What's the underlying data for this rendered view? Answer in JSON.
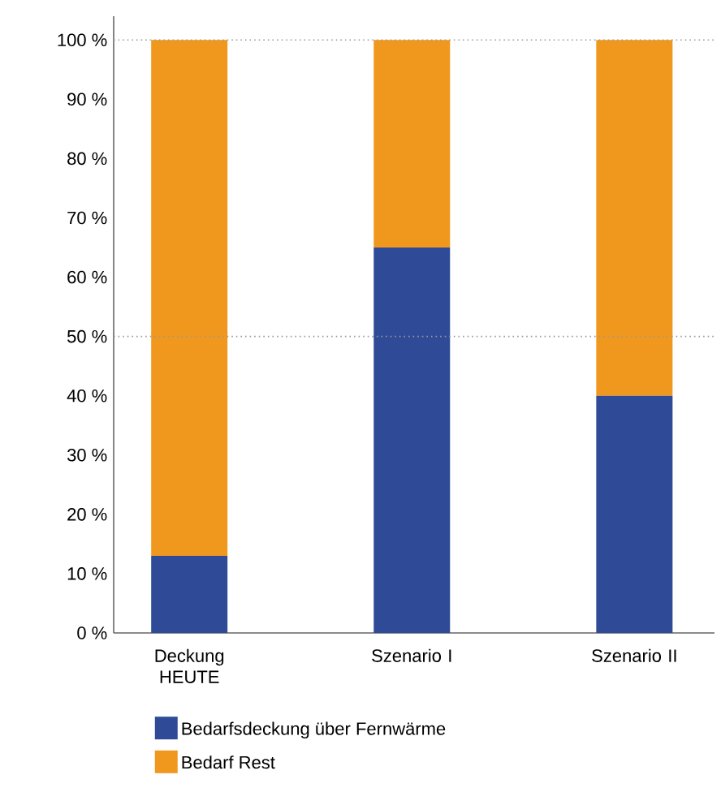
{
  "chart_data": {
    "type": "bar",
    "stacked": true,
    "categories": [
      "Deckung HEUTE",
      "Szenario I",
      "Szenario II"
    ],
    "series": [
      {
        "name": "Bedarfsdeckung über Fernwärme",
        "color": "#2f4b97",
        "values": [
          13,
          65,
          40
        ]
      },
      {
        "name": "Bedarf Rest",
        "color": "#f0971d",
        "values": [
          87,
          35,
          60
        ]
      }
    ],
    "ylim": [
      0,
      104
    ],
    "yticks": [
      {
        "value": 0,
        "label": "0 %"
      },
      {
        "value": 10,
        "label": "10 %"
      },
      {
        "value": 20,
        "label": "20 %"
      },
      {
        "value": 30,
        "label": "30 %"
      },
      {
        "value": 40,
        "label": "40 %"
      },
      {
        "value": 50,
        "label": "50 %"
      },
      {
        "value": 60,
        "label": "60 %"
      },
      {
        "value": 70,
        "label": "70 %"
      },
      {
        "value": 80,
        "label": "80 %"
      },
      {
        "value": 90,
        "label": "90 %"
      },
      {
        "value": 100,
        "label": "100 %"
      }
    ],
    "ref_lines": [
      {
        "axis": "y",
        "value": 50,
        "color": "#999999",
        "line_style": "dotted"
      },
      {
        "axis": "y",
        "value": 100,
        "color": "#999999",
        "line_style": "dotted"
      }
    ],
    "legend": "bottom"
  }
}
